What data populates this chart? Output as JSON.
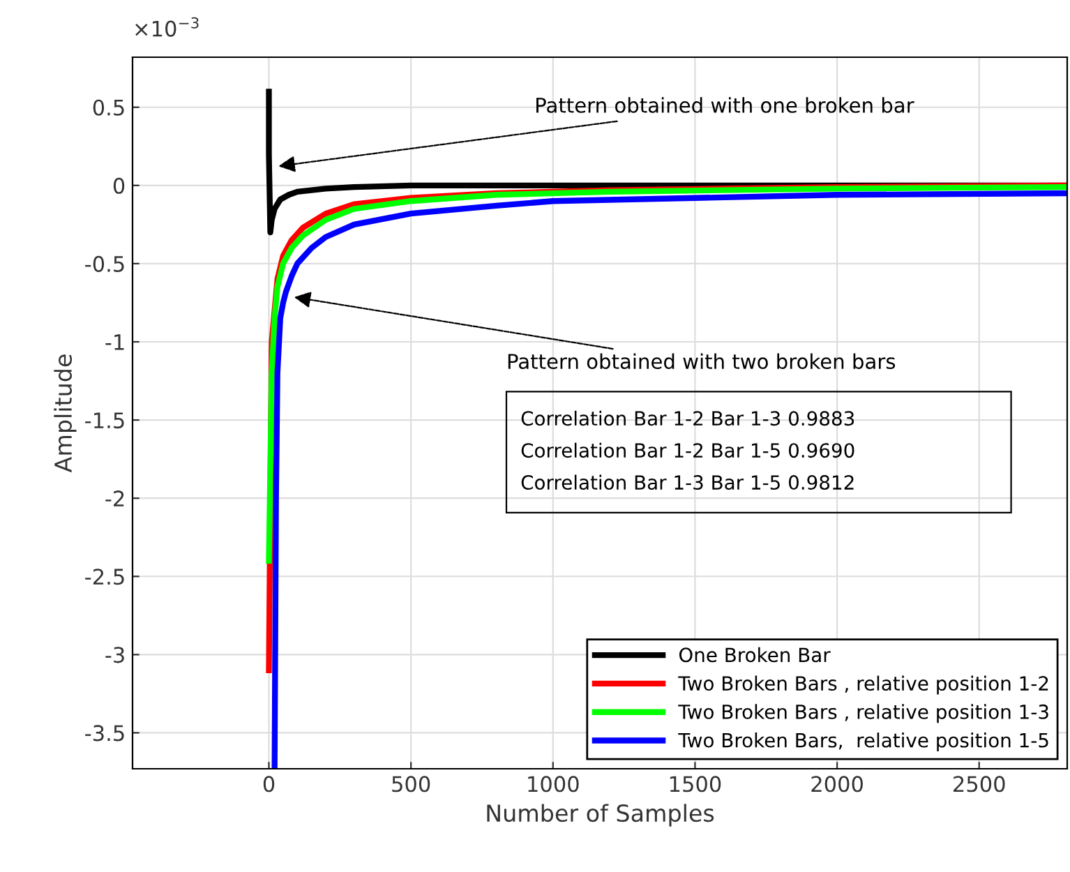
{
  "chart_data": {
    "type": "line",
    "xlabel": "Number of Samples",
    "ylabel": "Amplitude",
    "xlim": [
      -480,
      2810
    ],
    "ylim": [
      -3.73,
      0.82
    ],
    "xticks": [
      0,
      500,
      1000,
      1500,
      2000,
      2500
    ],
    "yticks": [
      0.5,
      0,
      -0.5,
      -1,
      -1.5,
      -2,
      -2.5,
      -3,
      -3.5
    ],
    "grid": true,
    "legend": "bottom right",
    "marker": "none",
    "line_style": "solid",
    "annotations": [
      "×10$^{−3}$",
      {
        "text": "Pattern obtained with one broken bar",
        "x": 20,
        "y": 0.12
      },
      {
        "text": "Pattern obtained with two broken bars",
        "x": 75,
        "y": -0.71
      },
      "Correlation Bar 1-2 Bar 1-3 0.9883",
      "Correlation Bar 1-2 Bar 1-5 0.9690",
      "Correlation Bar 1-3 Bar 1-5 0.9812"
    ],
    "series": [
      {
        "name": "One Broken Bar",
        "color": "#000000",
        "x": [
          0,
          0,
          5,
          10,
          20,
          40,
          70,
          100,
          150,
          200,
          300,
          500,
          1000,
          2000,
          2800
        ],
        "values": [
          0.6,
          0.2,
          -0.3,
          -0.22,
          -0.15,
          -0.09,
          -0.06,
          -0.04,
          -0.03,
          -0.02,
          -0.01,
          0,
          0,
          0,
          0
        ]
      },
      {
        "name": "Two Broken Bars , relative position 1-2",
        "color": "#ff0000",
        "x": [
          0,
          5,
          10,
          20,
          30,
          50,
          80,
          120,
          200,
          300,
          500,
          800,
          1200,
          2000,
          2800
        ],
        "values": [
          -3.1,
          -2.0,
          -1.0,
          -0.8,
          -0.6,
          -0.45,
          -0.35,
          -0.27,
          -0.18,
          -0.12,
          -0.08,
          -0.05,
          -0.03,
          -0.01,
          0
        ]
      },
      {
        "name": "Two Broken Bars , relative position 1-3",
        "color": "#00ff00",
        "x": [
          0,
          5,
          10,
          20,
          30,
          50,
          80,
          120,
          200,
          300,
          500,
          800,
          1200,
          2000,
          2800
        ],
        "values": [
          -2.4,
          -1.8,
          -1.2,
          -0.85,
          -0.65,
          -0.5,
          -0.4,
          -0.32,
          -0.22,
          -0.15,
          -0.1,
          -0.06,
          -0.04,
          -0.02,
          -0.01
        ]
      },
      {
        "name": "Two Broken Bars,  relative position 1-5",
        "color": "#0000ff",
        "x": [
          20,
          25,
          30,
          40,
          50,
          60,
          80,
          100,
          150,
          200,
          300,
          500,
          800,
          1000,
          1500,
          2000,
          2800
        ],
        "values": [
          -3.73,
          -2.0,
          -1.2,
          -0.85,
          -0.75,
          -0.68,
          -0.58,
          -0.5,
          -0.4,
          -0.33,
          -0.25,
          -0.18,
          -0.13,
          -0.1,
          -0.08,
          -0.06,
          -0.05
        ]
      }
    ]
  }
}
